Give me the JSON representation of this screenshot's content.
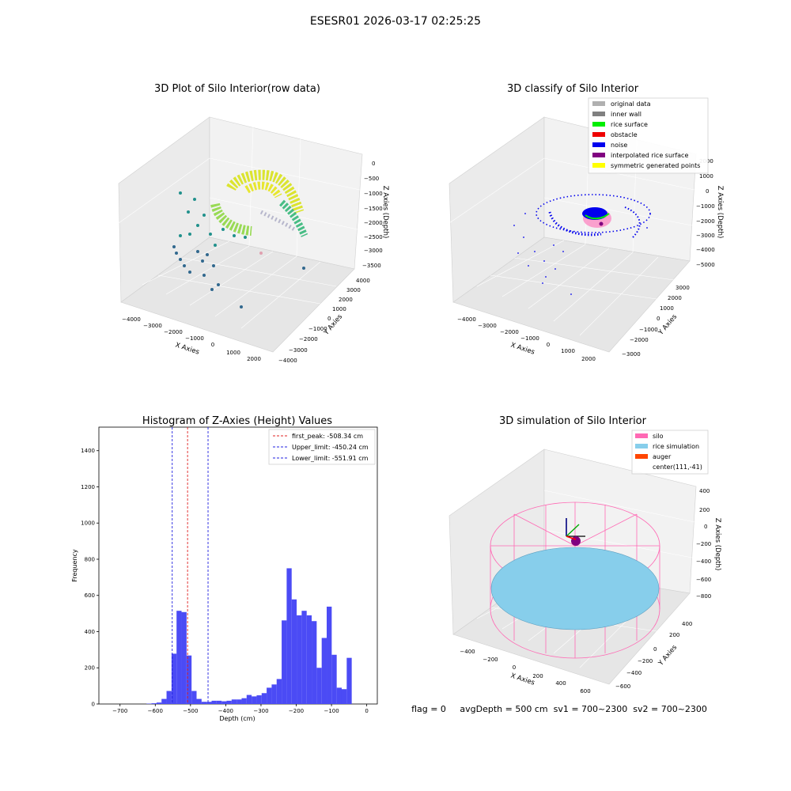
{
  "suptitle": "ESESR01 2026-03-17 02:25:25",
  "panels": {
    "raw": {
      "title": "3D Plot of Silo Interior(row data)",
      "xlabel": "X Axies",
      "ylabel": "Y Axies",
      "zlabel": "Z Axies (Depth)",
      "xticks": [
        "−4000",
        "−3000",
        "−2000",
        "−1000",
        "0",
        "1000",
        "2000"
      ],
      "yticks": [
        "−4000",
        "−3000",
        "−2000",
        "−1000",
        "0",
        "1000",
        "2000",
        "3000",
        "4000"
      ],
      "zticks": [
        "0",
        "−500",
        "−1000",
        "−1500",
        "−2000",
        "−2500",
        "−3000",
        "−3500"
      ]
    },
    "classify": {
      "title": "3D classify of Silo Interior",
      "xlabel": "X Axies",
      "ylabel": "Y Axies",
      "zlabel": "Z Axies (Depth)",
      "xticks": [
        "−4000",
        "−3000",
        "−2000",
        "−1000",
        "0",
        "1000",
        "2000"
      ],
      "yticks": [
        "−3000",
        "−2000",
        "−1000",
        "0",
        "1000",
        "2000",
        "3000"
      ],
      "zticks": [
        "2000",
        "1000",
        "0",
        "−1000",
        "−2000",
        "−3000",
        "−4000",
        "−5000"
      ],
      "legend": [
        {
          "label": "original data",
          "color": "#b0b0b0"
        },
        {
          "label": "inner wall",
          "color": "#808080"
        },
        {
          "label": "rice surface",
          "color": "#00ee00"
        },
        {
          "label": "obstacle",
          "color": "#ee0000"
        },
        {
          "label": "noise",
          "color": "#0000ee"
        },
        {
          "label": "interpolated rice surface",
          "color": "#800080"
        },
        {
          "label": "symmetric generated points",
          "color": "#ffff00"
        }
      ]
    },
    "simulation": {
      "title": "3D simulation of Silo Interior",
      "xlabel": "X Axies",
      "ylabel": "Y Axies",
      "zlabel": "Z Axies (Depth)",
      "xticks": [
        "−400",
        "−200",
        "0",
        "200",
        "400",
        "600"
      ],
      "yticks": [
        "−600",
        "−400",
        "−200",
        "0",
        "200",
        "400"
      ],
      "zticks": [
        "400",
        "200",
        "0",
        "−200",
        "−400",
        "−600",
        "−800"
      ],
      "legend": [
        {
          "label": "silo",
          "color": "#ff69b4"
        },
        {
          "label": "rice simulation",
          "color": "#87ceeb"
        },
        {
          "label": "auger",
          "color": "#ff4500"
        },
        {
          "label": "center(111,-41)",
          "color": ""
        }
      ],
      "footer": "flag = 0     avgDepth = 500 cm  sv1 = 700~2300  sv2 = 700~2300"
    }
  },
  "chart_data": {
    "type": "bar",
    "title": "Histogram of Z-Axies (Height) Values",
    "xlabel": "Depth (cm)",
    "ylabel": "Frequency",
    "xlim": [
      -760,
      30
    ],
    "ylim": [
      0,
      1530
    ],
    "xticks": [
      -700,
      -600,
      -500,
      -400,
      -300,
      -200,
      -100,
      0
    ],
    "yticks": [
      0,
      200,
      400,
      600,
      800,
      1000,
      1200,
      1400
    ],
    "bin_start": -710,
    "bin_width": 14.2,
    "values": [
      0,
      0,
      0,
      0,
      0,
      0,
      2,
      4,
      8,
      28,
      72,
      278,
      515,
      508,
      268,
      72,
      28,
      12,
      12,
      18,
      18,
      15,
      18,
      25,
      25,
      32,
      50,
      42,
      48,
      60,
      90,
      108,
      138,
      462,
      750,
      578,
      490,
      515,
      490,
      458,
      200,
      365,
      538,
      272,
      90,
      82,
      255
    ],
    "color": "#4b4bf5",
    "reference_lines": [
      {
        "label": "first_peak: -508.34 cm",
        "x": -508.34,
        "color": "#e02020"
      },
      {
        "label": "Upper_limit: -450.24 cm",
        "x": -450.24,
        "color": "#2020e0"
      },
      {
        "label": "Lower_limit: -551.91 cm",
        "x": -551.91,
        "color": "#2020e0"
      }
    ],
    "legend_position": "upper right"
  }
}
